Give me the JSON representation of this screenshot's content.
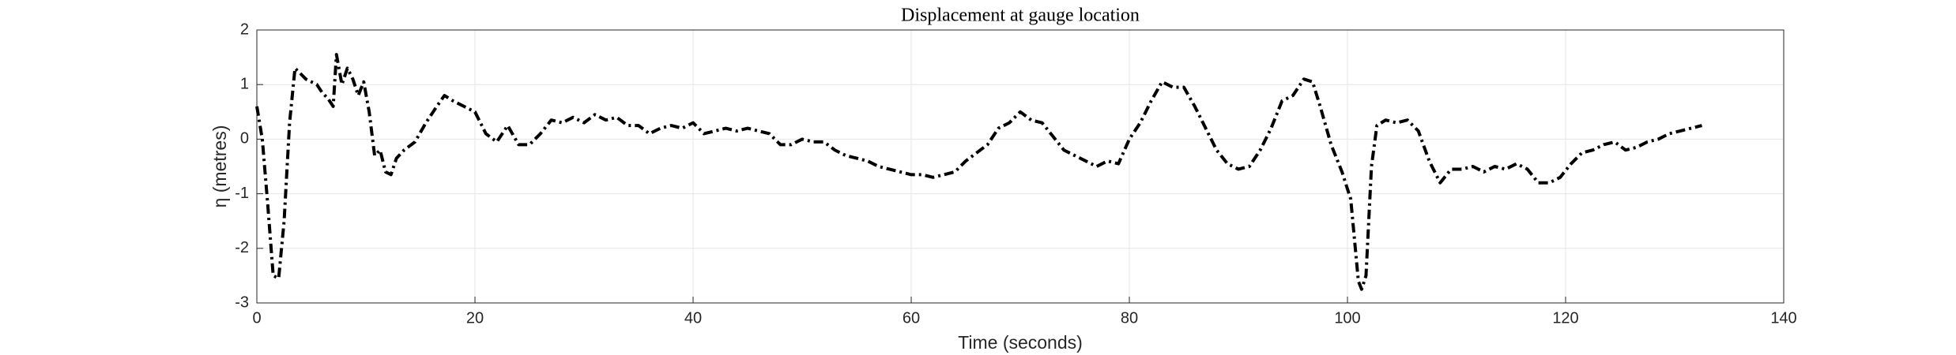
{
  "chart_data": {
    "type": "line",
    "title": "Displacement at gauge location",
    "xlabel": "Time (seconds)",
    "ylabel": "η (metres)",
    "color": "#000000",
    "linestyle": "dashdot",
    "grid": true,
    "xlim": [
      0,
      140
    ],
    "xticks": [
      0,
      20,
      40,
      60,
      80,
      100,
      120,
      140
    ],
    "ylim": [
      -3,
      2
    ],
    "yticks": [
      -3,
      -2,
      -1,
      0,
      1,
      2
    ],
    "x": [
      0,
      0.5,
      1,
      1.5,
      2,
      2.5,
      3,
      3.5,
      4,
      4.5,
      5,
      5.5,
      6,
      6.5,
      7,
      7.3,
      7.8,
      8.3,
      8.8,
      9.3,
      9.8,
      10.3,
      10.8,
      11.3,
      11.8,
      12.3,
      12.8,
      13.5,
      14.5,
      15.5,
      16.5,
      17.2,
      18,
      19,
      20,
      21,
      22,
      23,
      24,
      25,
      26,
      27,
      28,
      29,
      30,
      31,
      32,
      33,
      34,
      35,
      36,
      37,
      38,
      39,
      40,
      41,
      42,
      43,
      44,
      45,
      46,
      47,
      48,
      49,
      50,
      51,
      52,
      53,
      54,
      55,
      56,
      57,
      58,
      59,
      60,
      61,
      62,
      63,
      64,
      65,
      66,
      67,
      68,
      69,
      70,
      71,
      72,
      73,
      74,
      75,
      76,
      77,
      78,
      79,
      80,
      81,
      82,
      83,
      84,
      85,
      86,
      87,
      88,
      89,
      90,
      91,
      92,
      93,
      94,
      95,
      96,
      96.8,
      97.5,
      98.5,
      99.5,
      100.3,
      101,
      101.3,
      101.7,
      102.2,
      102.7,
      103.5,
      104.5,
      105.5,
      106.5,
      107.5,
      108.5,
      109.5,
      110.5,
      111.5,
      112.5,
      113.5,
      114.5,
      115.5,
      116.5,
      117.5,
      118.5,
      119.5,
      120.5,
      121.5,
      122.5,
      123.5,
      124.5,
      125.5,
      126.5,
      127.5,
      128.5,
      129.5,
      130.5,
      131.5,
      132.5
    ],
    "values": [
      0.6,
      0.0,
      -1.2,
      -2.5,
      -2.55,
      -1.5,
      0.3,
      1.3,
      1.2,
      1.1,
      1.05,
      1.0,
      0.85,
      0.75,
      0.6,
      1.55,
      1.0,
      1.3,
      1.1,
      0.8,
      1.05,
      0.5,
      -0.3,
      -0.2,
      -0.6,
      -0.65,
      -0.35,
      -0.2,
      -0.05,
      0.3,
      0.6,
      0.8,
      0.7,
      0.6,
      0.5,
      0.1,
      -0.05,
      0.25,
      -0.1,
      -0.1,
      0.1,
      0.35,
      0.3,
      0.4,
      0.3,
      0.45,
      0.35,
      0.4,
      0.25,
      0.25,
      0.1,
      0.2,
      0.25,
      0.2,
      0.3,
      0.1,
      0.15,
      0.2,
      0.15,
      0.2,
      0.15,
      0.1,
      -0.1,
      -0.1,
      0.0,
      -0.05,
      -0.05,
      -0.2,
      -0.3,
      -0.35,
      -0.4,
      -0.5,
      -0.55,
      -0.6,
      -0.65,
      -0.65,
      -0.7,
      -0.65,
      -0.6,
      -0.4,
      -0.25,
      -0.1,
      0.2,
      0.3,
      0.5,
      0.35,
      0.3,
      0.05,
      -0.2,
      -0.3,
      -0.4,
      -0.5,
      -0.4,
      -0.45,
      0.0,
      0.3,
      0.7,
      1.05,
      0.95,
      0.95,
      0.6,
      0.2,
      -0.2,
      -0.45,
      -0.55,
      -0.5,
      -0.2,
      0.2,
      0.7,
      0.8,
      1.1,
      1.05,
      0.6,
      -0.1,
      -0.6,
      -1.1,
      -2.6,
      -2.75,
      -2.5,
      -0.5,
      0.25,
      0.35,
      0.3,
      0.35,
      0.15,
      -0.4,
      -0.8,
      -0.55,
      -0.55,
      -0.5,
      -0.6,
      -0.5,
      -0.55,
      -0.45,
      -0.55,
      -0.8,
      -0.8,
      -0.7,
      -0.45,
      -0.25,
      -0.2,
      -0.1,
      -0.05,
      -0.2,
      -0.15,
      -0.05,
      0.0,
      0.1,
      0.15,
      0.2,
      0.25
    ]
  }
}
